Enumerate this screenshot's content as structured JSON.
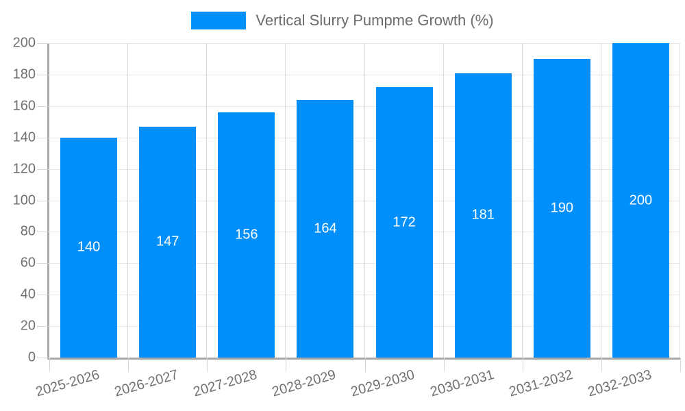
{
  "legend": {
    "label": "Vertical Slurry Pumpme Growth (%)"
  },
  "chart_data": {
    "type": "bar",
    "title": "",
    "xlabel": "",
    "ylabel": "",
    "categories": [
      "2025-2026",
      "2026-2027",
      "2027-2028",
      "2028-2029",
      "2029-2030",
      "2030-2031",
      "2031-2032",
      "2032-2033"
    ],
    "series": [
      {
        "name": "Vertical Slurry Pumpme Growth (%)",
        "values": [
          140,
          147,
          156,
          164,
          172,
          181,
          190,
          200
        ]
      }
    ],
    "value_labels": [
      140,
      147,
      156,
      164,
      172,
      181,
      190,
      200
    ],
    "y_ticks": [
      0,
      20,
      40,
      60,
      80,
      100,
      120,
      140,
      160,
      180,
      200
    ],
    "ylim": [
      0,
      200
    ],
    "grid": true,
    "legend_position": "top",
    "xlabel_rotation_deg": -16
  },
  "colors": {
    "bar": "#008FFB",
    "value_label": "#ffffff",
    "axis_line": "#a9a9a9",
    "grid_horizontal": "#e7e7e7",
    "grid_vertical": "#dcdcdc",
    "tick_mark": "#d6d6d6",
    "tick_label": "#6e7173",
    "legend_text": "#6b6b6b",
    "background": "#ffffff"
  }
}
